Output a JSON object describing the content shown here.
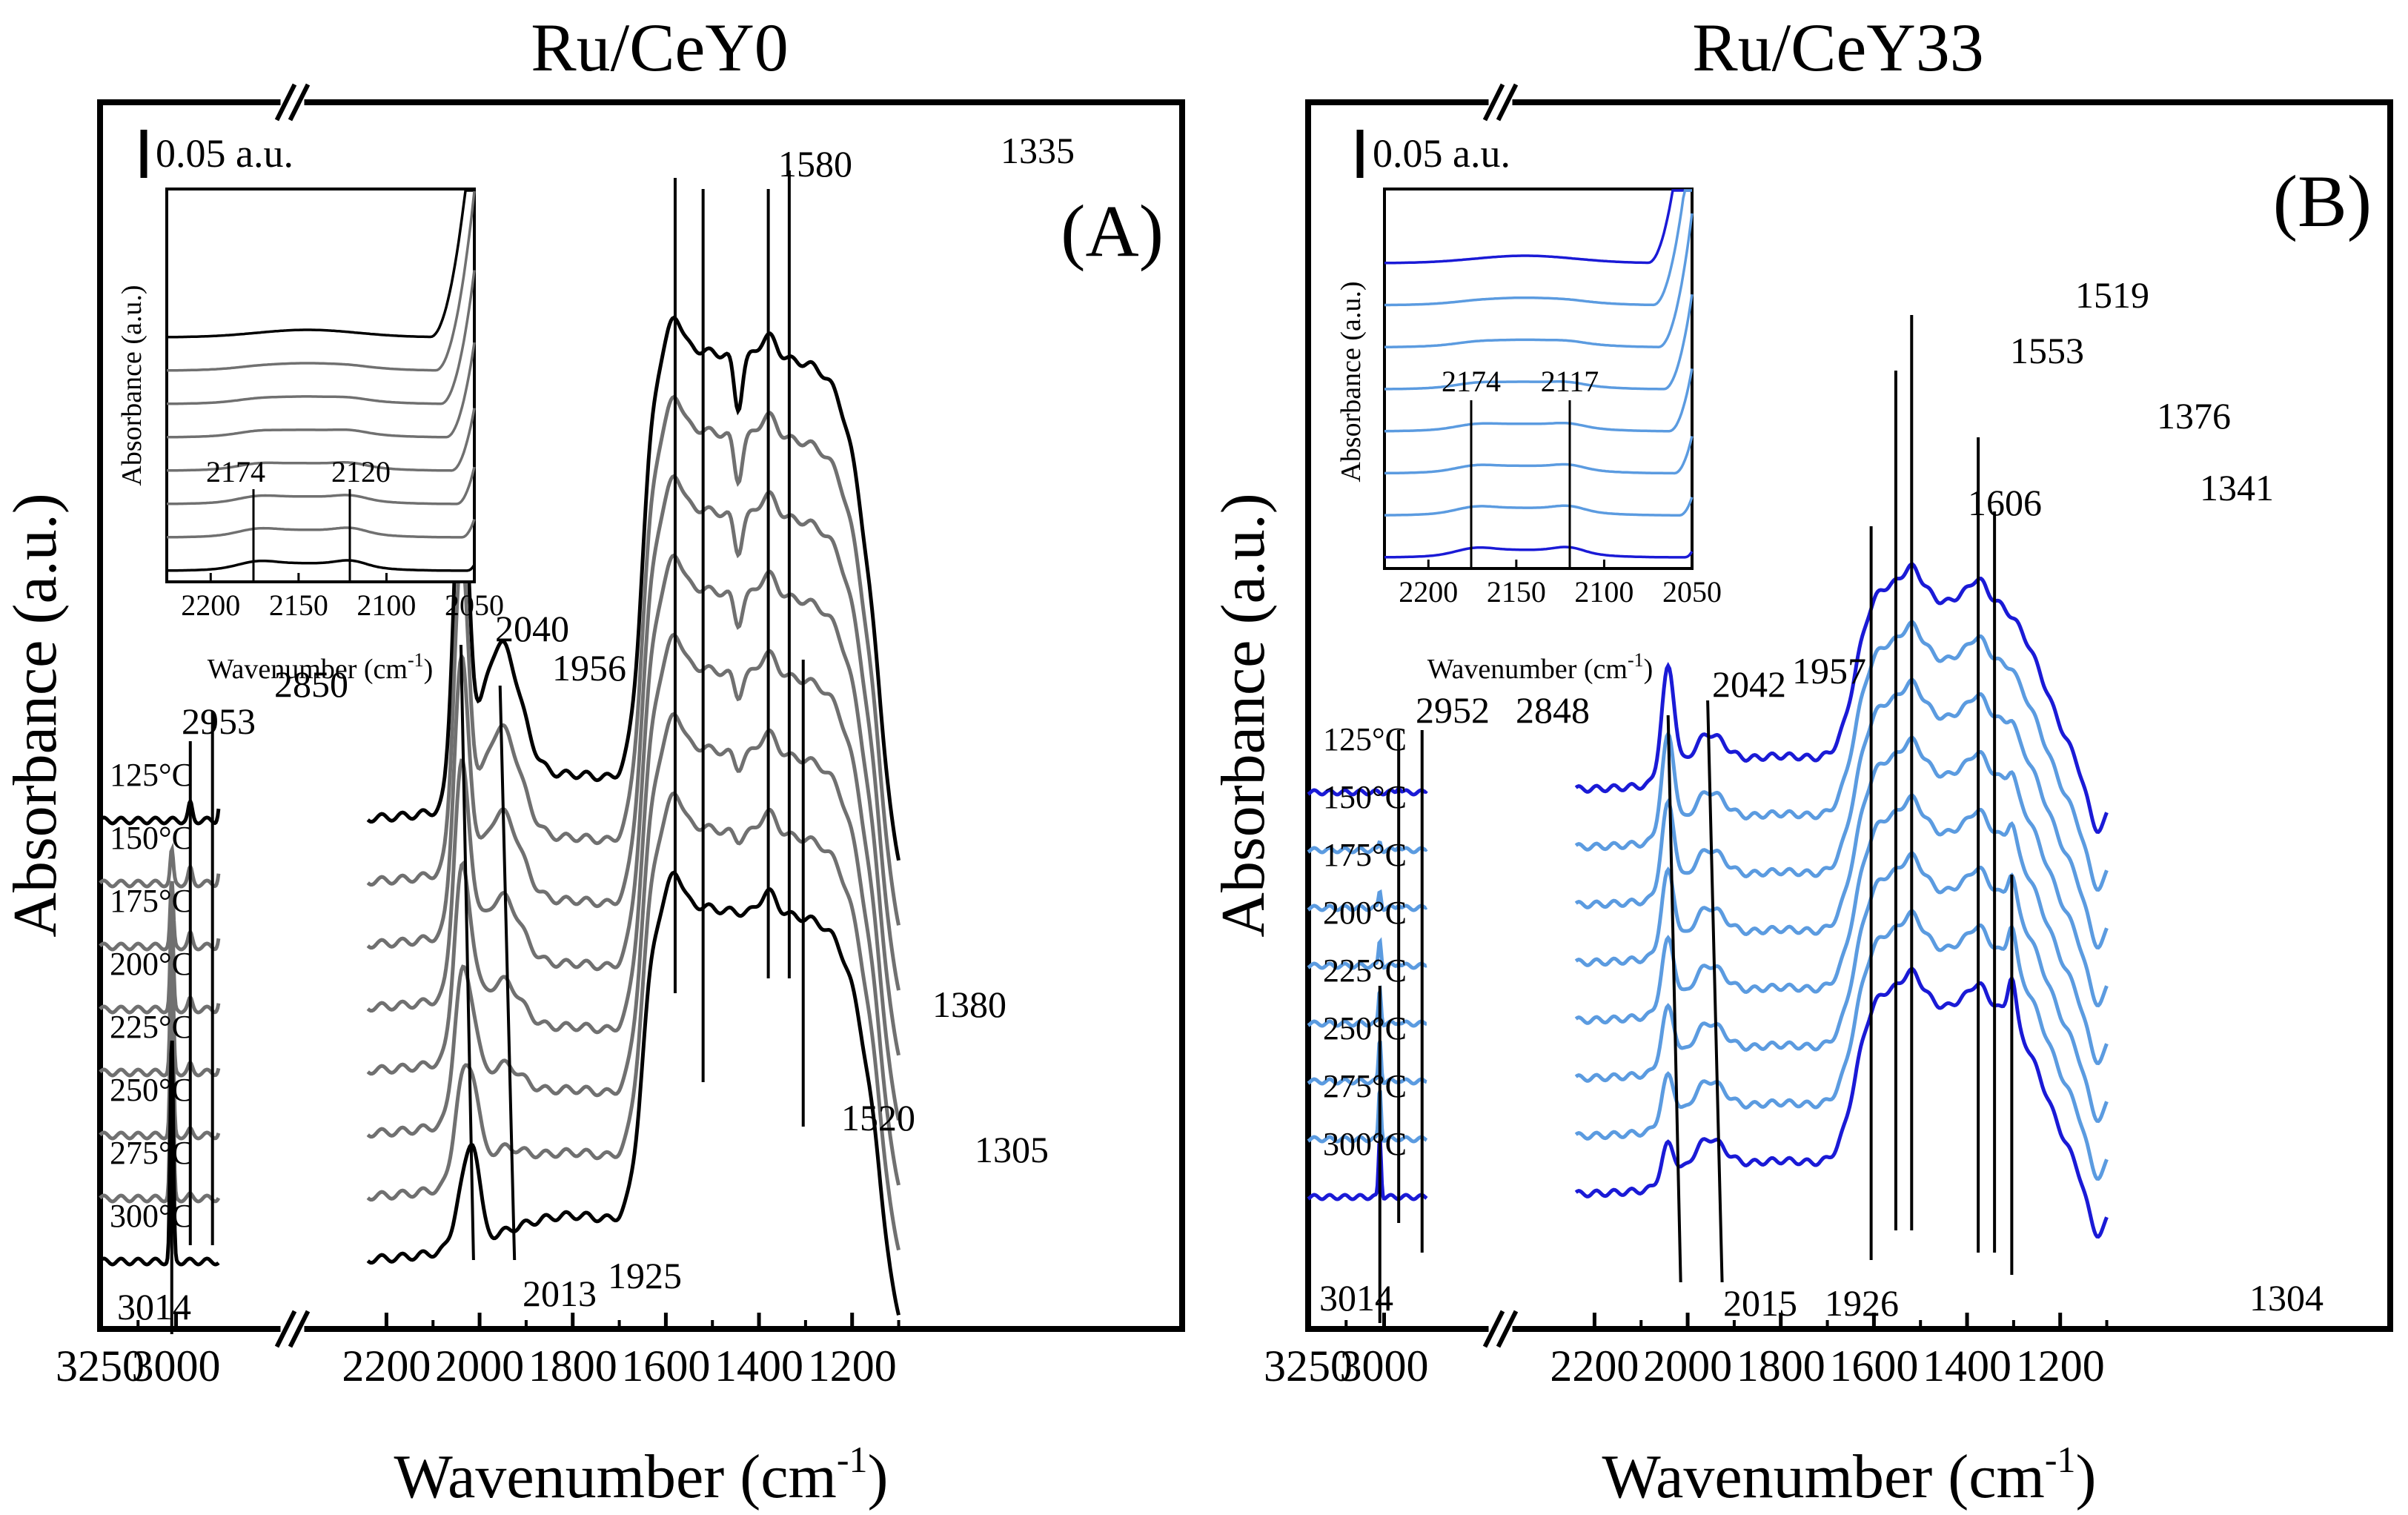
{
  "chart_data": [
    {
      "type": "line",
      "title": "Ru/CeY0",
      "panel_label": "(A)",
      "xlabel": "Wavenumber (cm",
      "xlabel_sup": "-1",
      "xlabel_close": ")",
      "ylabel": "Absorbance (a.u.)",
      "scale_bar": "0.05 a.u.",
      "x_segments": [
        [
          3250,
          2850
        ],
        [
          2250,
          1100
        ]
      ],
      "x_ticks": [
        "3250",
        "3000",
        "2200",
        "2000",
        "1800",
        "1600",
        "1400",
        "1200"
      ],
      "series": [
        "125°C",
        "150°C",
        "175°C",
        "200°C",
        "225°C",
        "250°C",
        "275°C",
        "300°C"
      ],
      "bands_top": [
        "2953",
        "2850",
        "2040",
        "1956",
        "1580",
        "1335"
      ],
      "bands_bottom": [
        "3014",
        "2013",
        "1925",
        "1520",
        "1380",
        "1305"
      ],
      "band_lines": [
        {
          "x": 2953,
          "label": "2953"
        },
        {
          "x": 2850,
          "label": "2850"
        },
        {
          "x": 3014,
          "label": "3014"
        },
        {
          "x": 2040,
          "label": "2040"
        },
        {
          "x": 2013,
          "label": "2013"
        },
        {
          "x": 1956,
          "label": "1956"
        },
        {
          "x": 1925,
          "label": "1925"
        },
        {
          "x": 1580,
          "label": "1580"
        },
        {
          "x": 1520,
          "label": "1520"
        },
        {
          "x": 1380,
          "label": "1380"
        },
        {
          "x": 1335,
          "label": "1335"
        },
        {
          "x": 1305,
          "label": "1305"
        }
      ],
      "inset": {
        "xlabel": "Wavenumber (cm",
        "xlabel_sup": "-1",
        "xlabel_close": ")",
        "ylabel": "Absorbance (a.u.)",
        "xlim": [
          2225,
          2050
        ],
        "x_ticks": [
          "2200",
          "2150",
          "2100",
          "2050"
        ],
        "peaks": [
          "2174",
          "2120"
        ]
      }
    },
    {
      "type": "line",
      "title": "Ru/CeY33",
      "panel_label": "(B)",
      "xlabel": "Wavenumber (cm",
      "xlabel_sup": "-1",
      "xlabel_close": ")",
      "ylabel": "Absorbance (a.u.)",
      "scale_bar": "0.05 a.u.",
      "x_segments": [
        [
          3250,
          2850
        ],
        [
          2250,
          1100
        ]
      ],
      "x_ticks": [
        "3250",
        "3000",
        "2200",
        "2000",
        "1800",
        "1600",
        "1400",
        "1200"
      ],
      "series": [
        "125°C",
        "150°C",
        "175°C",
        "200°C",
        "225°C",
        "250°C",
        "275°C",
        "300°C"
      ],
      "bands_top": [
        "2952",
        "2848",
        "2042",
        "1957",
        "1606",
        "1553",
        "1519",
        "1376",
        "1341"
      ],
      "bands_bottom": [
        "3014",
        "2015",
        "1926",
        "1304"
      ],
      "inset": {
        "xlabel": "Wavenumber (cm",
        "xlabel_sup": "-1",
        "xlabel_close": ")",
        "ylabel": "Absorbance (a.u.)",
        "xlim": [
          2225,
          2050
        ],
        "x_ticks": [
          "2200",
          "2150",
          "2100",
          "2050"
        ],
        "peaks": [
          "2174",
          "2117"
        ]
      }
    }
  ],
  "colors": {
    "a_outer": "#000000",
    "a_inner": "#707070",
    "b_outer": "#1a1ad6",
    "b_inner": "#5b9be0"
  }
}
